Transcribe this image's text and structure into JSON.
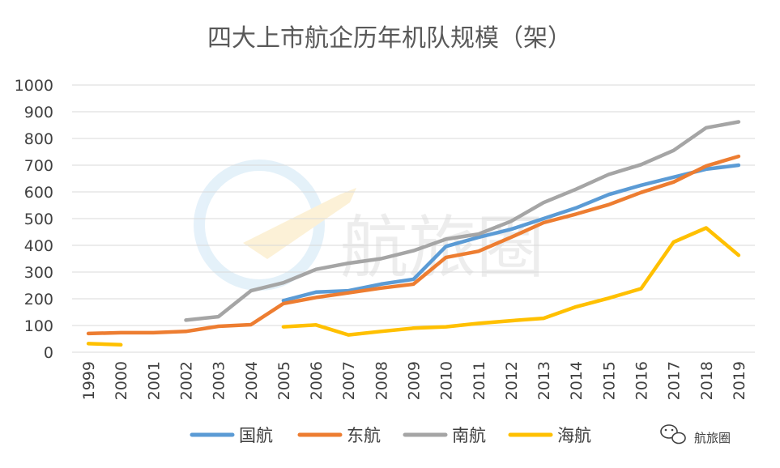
{
  "chart_data": {
    "type": "line",
    "title": "四大上市航企历年机队规模（架）",
    "xlabel": "",
    "ylabel": "",
    "categories": [
      "1999",
      "2000",
      "2001",
      "2002",
      "2003",
      "2004",
      "2005",
      "2006",
      "2007",
      "2008",
      "2009",
      "2010",
      "2011",
      "2012",
      "2013",
      "2014",
      "2015",
      "2016",
      "2017",
      "2018",
      "2019"
    ],
    "ylim": [
      0,
      1000
    ],
    "yticks": [
      "0",
      "100",
      "200",
      "300",
      "400",
      "500",
      "600",
      "700",
      "800",
      "900",
      "1000"
    ],
    "grid": true,
    "legend_position": "bottom",
    "series": [
      {
        "name": "国航",
        "color": "#5B9BD5",
        "values": [
          null,
          null,
          null,
          null,
          null,
          null,
          193,
          225,
          230,
          255,
          273,
          396,
          430,
          460,
          500,
          540,
          590,
          625,
          655,
          685,
          700
        ]
      },
      {
        "name": "东航",
        "color": "#ED7D31",
        "values": [
          70,
          73,
          73,
          78,
          97,
          103,
          182,
          205,
          222,
          240,
          255,
          355,
          378,
          430,
          485,
          517,
          552,
          598,
          637,
          697,
          733
        ]
      },
      {
        "name": "南航",
        "color": "#A5A5A5",
        "values": [
          null,
          null,
          null,
          120,
          133,
          230,
          260,
          310,
          333,
          350,
          380,
          423,
          442,
          490,
          560,
          610,
          665,
          702,
          755,
          840,
          862
        ]
      },
      {
        "name": "海航",
        "color": "#FFC000",
        "values": [
          32,
          28,
          null,
          null,
          null,
          null,
          95,
          102,
          65,
          78,
          90,
          95,
          108,
          118,
          127,
          170,
          202,
          238,
          412,
          465,
          363
        ]
      }
    ]
  },
  "watermark": {
    "center_text": "航旅圈",
    "corner_text": "航旅圈",
    "corner_icon": "wechat-icon"
  }
}
